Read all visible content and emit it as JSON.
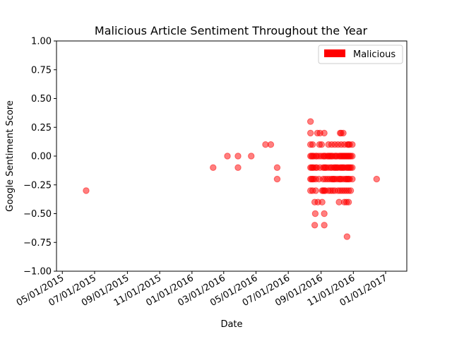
{
  "chart_data": {
    "type": "scatter",
    "title": "Malicious Article Sentiment Throughout the Year",
    "xlabel": "Date",
    "ylabel": "Google Sentiment Score",
    "xlim": [
      "2015-04-20",
      "2017-02-10"
    ],
    "ylim": [
      -1.0,
      1.0
    ],
    "grid": false,
    "legend_position": "top-right",
    "y_ticks": [
      "1.00",
      "0.75",
      "0.50",
      "0.25",
      "0.00",
      "−0.25",
      "−0.50",
      "−0.75",
      "−1.00"
    ],
    "x_ticks": [
      {
        "date": "2015-05-01",
        "label": "05/01/2015"
      },
      {
        "date": "2015-07-01",
        "label": "07/01/2015"
      },
      {
        "date": "2015-09-01",
        "label": "09/01/2015"
      },
      {
        "date": "2015-11-01",
        "label": "11/01/2015"
      },
      {
        "date": "2016-01-01",
        "label": "01/01/2016"
      },
      {
        "date": "2016-03-01",
        "label": "03/01/2016"
      },
      {
        "date": "2016-05-01",
        "label": "05/01/2016"
      },
      {
        "date": "2016-07-01",
        "label": "07/01/2016"
      },
      {
        "date": "2016-09-01",
        "label": "09/01/2016"
      },
      {
        "date": "2016-11-01",
        "label": "11/01/2016"
      },
      {
        "date": "2017-01-01",
        "label": "01/01/2017"
      }
    ],
    "series": [
      {
        "name": "Malicious",
        "color": "#ff0000",
        "points": [
          [
            "2015-06-15",
            -0.3
          ],
          [
            "2016-02-10",
            -0.1
          ],
          [
            "2016-03-08",
            0.0
          ],
          [
            "2016-03-28",
            0.0
          ],
          [
            "2016-03-28",
            -0.1
          ],
          [
            "2016-04-22",
            0.0
          ],
          [
            "2016-05-19",
            0.1
          ],
          [
            "2016-05-29",
            0.1
          ],
          [
            "2016-06-10",
            -0.1
          ],
          [
            "2016-06-10",
            -0.2
          ],
          [
            "2016-08-12",
            0.3
          ],
          [
            "2016-08-12",
            0.2
          ],
          [
            "2016-08-12",
            0.1
          ],
          [
            "2016-08-12",
            0.0
          ],
          [
            "2016-08-12",
            -0.1
          ],
          [
            "2016-08-12",
            -0.2
          ],
          [
            "2016-08-12",
            -0.3
          ],
          [
            "2016-08-14",
            0.0
          ],
          [
            "2016-08-14",
            -0.1
          ],
          [
            "2016-08-14",
            -0.2
          ],
          [
            "2016-08-16",
            0.1
          ],
          [
            "2016-08-16",
            0.0
          ],
          [
            "2016-08-16",
            -0.1
          ],
          [
            "2016-08-16",
            -0.2
          ],
          [
            "2016-08-16",
            -0.3
          ],
          [
            "2016-08-18",
            0.0
          ],
          [
            "2016-08-18",
            -0.1
          ],
          [
            "2016-08-18",
            -0.2
          ],
          [
            "2016-08-20",
            -0.4
          ],
          [
            "2016-08-20",
            -0.6
          ],
          [
            "2016-08-21",
            -0.5
          ],
          [
            "2016-08-22",
            0.0
          ],
          [
            "2016-08-22",
            -0.1
          ],
          [
            "2016-08-22",
            -0.2
          ],
          [
            "2016-08-22",
            -0.3
          ],
          [
            "2016-08-24",
            0.0
          ],
          [
            "2016-08-24",
            -0.1
          ],
          [
            "2016-08-25",
            0.2
          ],
          [
            "2016-08-26",
            -0.4
          ],
          [
            "2016-08-28",
            0.0
          ],
          [
            "2016-08-28",
            -0.2
          ],
          [
            "2016-08-29",
            0.1
          ],
          [
            "2016-08-30",
            0.2
          ],
          [
            "2016-08-30",
            -0.1
          ],
          [
            "2016-09-01",
            0.0
          ],
          [
            "2016-09-02",
            0.1
          ],
          [
            "2016-09-03",
            -0.3
          ],
          [
            "2016-09-03",
            -0.4
          ],
          [
            "2016-09-05",
            0.0
          ],
          [
            "2016-09-05",
            -0.1
          ],
          [
            "2016-09-05",
            -0.2
          ],
          [
            "2016-09-05",
            -0.3
          ],
          [
            "2016-09-07",
            0.2
          ],
          [
            "2016-09-07",
            0.0
          ],
          [
            "2016-09-07",
            -0.1
          ],
          [
            "2016-09-07",
            -0.3
          ],
          [
            "2016-09-07",
            -0.5
          ],
          [
            "2016-09-07",
            -0.6
          ],
          [
            "2016-09-09",
            0.0
          ],
          [
            "2016-09-09",
            -0.1
          ],
          [
            "2016-09-09",
            -0.2
          ],
          [
            "2016-09-09",
            -0.3
          ],
          [
            "2016-09-11",
            -0.1
          ],
          [
            "2016-09-13",
            0.0
          ],
          [
            "2016-09-13",
            -0.2
          ],
          [
            "2016-09-15",
            0.1
          ],
          [
            "2016-09-15",
            0.0
          ],
          [
            "2016-09-15",
            -0.1
          ],
          [
            "2016-09-15",
            -0.3
          ],
          [
            "2016-09-17",
            0.0
          ],
          [
            "2016-09-17",
            -0.2
          ],
          [
            "2016-09-19",
            0.0
          ],
          [
            "2016-09-19",
            -0.1
          ],
          [
            "2016-09-19",
            -0.3
          ],
          [
            "2016-09-21",
            0.1
          ],
          [
            "2016-09-21",
            0.0
          ],
          [
            "2016-09-21",
            -0.1
          ],
          [
            "2016-09-21",
            -0.2
          ],
          [
            "2016-09-23",
            0.0
          ],
          [
            "2016-09-23",
            -0.2
          ],
          [
            "2016-09-23",
            -0.3
          ],
          [
            "2016-09-25",
            -0.1
          ],
          [
            "2016-09-25",
            -0.2
          ],
          [
            "2016-09-27",
            0.1
          ],
          [
            "2016-09-27",
            0.0
          ],
          [
            "2016-09-27",
            -0.1
          ],
          [
            "2016-09-27",
            -0.2
          ],
          [
            "2016-09-27",
            -0.3
          ],
          [
            "2016-09-29",
            0.0
          ],
          [
            "2016-09-29",
            -0.1
          ],
          [
            "2016-10-01",
            0.0
          ],
          [
            "2016-10-01",
            -0.1
          ],
          [
            "2016-10-01",
            -0.2
          ],
          [
            "2016-10-03",
            0.1
          ],
          [
            "2016-10-03",
            -0.1
          ],
          [
            "2016-10-03",
            -0.3
          ],
          [
            "2016-10-05",
            0.0
          ],
          [
            "2016-10-05",
            -0.2
          ],
          [
            "2016-10-05",
            -0.4
          ],
          [
            "2016-10-07",
            0.2
          ],
          [
            "2016-10-07",
            0.0
          ],
          [
            "2016-10-07",
            -0.1
          ],
          [
            "2016-10-07",
            -0.2
          ],
          [
            "2016-10-07",
            -0.3
          ],
          [
            "2016-10-09",
            0.2
          ],
          [
            "2016-10-09",
            0.1
          ],
          [
            "2016-10-09",
            0.0
          ],
          [
            "2016-10-09",
            -0.1
          ],
          [
            "2016-10-09",
            -0.2
          ],
          [
            "2016-10-11",
            0.0
          ],
          [
            "2016-10-11",
            -0.1
          ],
          [
            "2016-10-11",
            -0.3
          ],
          [
            "2016-10-13",
            0.2
          ],
          [
            "2016-10-13",
            0.0
          ],
          [
            "2016-10-13",
            -0.1
          ],
          [
            "2016-10-13",
            -0.2
          ],
          [
            "2016-10-15",
            0.1
          ],
          [
            "2016-10-15",
            0.0
          ],
          [
            "2016-10-15",
            -0.1
          ],
          [
            "2016-10-15",
            -0.3
          ],
          [
            "2016-10-15",
            -0.4
          ],
          [
            "2016-10-17",
            0.0
          ],
          [
            "2016-10-17",
            -0.2
          ],
          [
            "2016-10-19",
            0.0
          ],
          [
            "2016-10-19",
            -0.1
          ],
          [
            "2016-10-19",
            -0.2
          ],
          [
            "2016-10-19",
            -0.3
          ],
          [
            "2016-10-19",
            -0.4
          ],
          [
            "2016-10-20",
            -0.7
          ],
          [
            "2016-10-21",
            0.1
          ],
          [
            "2016-10-21",
            0.0
          ],
          [
            "2016-10-21",
            -0.1
          ],
          [
            "2016-10-21",
            -0.2
          ],
          [
            "2016-10-23",
            0.1
          ],
          [
            "2016-10-23",
            0.0
          ],
          [
            "2016-10-23",
            -0.1
          ],
          [
            "2016-10-23",
            -0.2
          ],
          [
            "2016-10-23",
            -0.3
          ],
          [
            "2016-10-23",
            -0.4
          ],
          [
            "2016-10-25",
            0.1
          ],
          [
            "2016-10-25",
            0.0
          ],
          [
            "2016-10-25",
            -0.1
          ],
          [
            "2016-10-25",
            -0.2
          ],
          [
            "2016-10-27",
            0.0
          ],
          [
            "2016-10-27",
            -0.1
          ],
          [
            "2016-10-27",
            -0.3
          ],
          [
            "2016-10-30",
            0.1
          ],
          [
            "2016-10-30",
            0.0
          ],
          [
            "2016-10-30",
            -0.1
          ],
          [
            "2016-10-30",
            -0.2
          ],
          [
            "2016-12-15",
            -0.2
          ]
        ]
      }
    ]
  }
}
